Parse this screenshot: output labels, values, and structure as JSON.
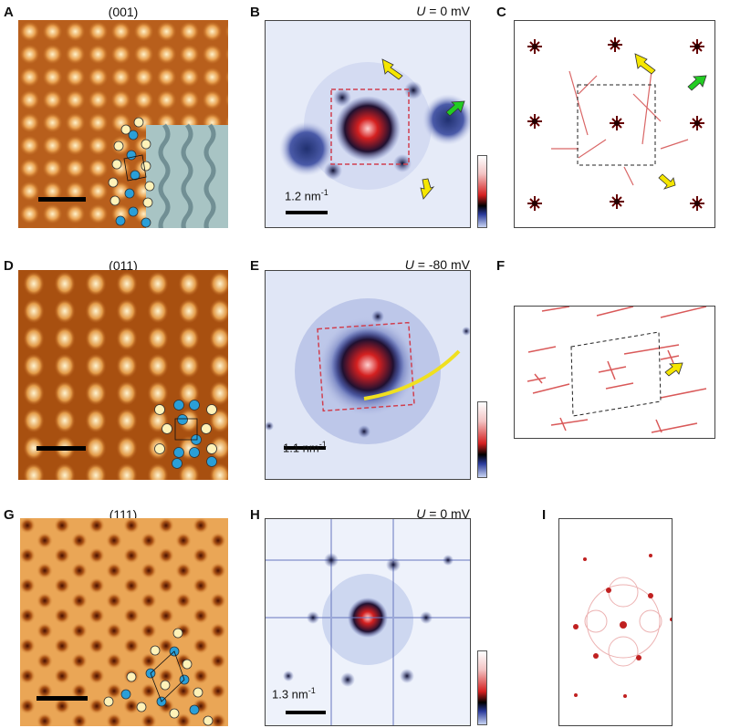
{
  "panels": [
    {
      "label": "A",
      "title": "(001)"
    },
    {
      "label": "B",
      "voltage_var": "U",
      "voltage_text": " = 0 mV",
      "scale_value": "1.2 nm",
      "scale_exp": "-1"
    },
    {
      "label": "C"
    },
    {
      "label": "D",
      "title": "(011)"
    },
    {
      "label": "E",
      "voltage_var": "U",
      "voltage_text": " = -80 mV",
      "scale_value": "1.1 nm",
      "scale_exp": "-1"
    },
    {
      "label": "F"
    },
    {
      "label": "G",
      "title": "(111)"
    },
    {
      "label": "H",
      "voltage_var": "U",
      "voltage_text": " = 0 mV",
      "scale_value": "1.3 nm",
      "scale_exp": "-1"
    },
    {
      "label": "I"
    }
  ],
  "colors": {
    "stm_bright": "#fff1c8",
    "stm_mid": "#d98a3a",
    "stm_dark": "#5a1800",
    "fft_bg": "#e8ecf8",
    "fft_red": "#d42020",
    "arrow_yellow": "#f5e600",
    "arrow_green": "#22cc22",
    "atom_blue": "#2a9fd8",
    "atom_yellow": "#fff2b8"
  }
}
